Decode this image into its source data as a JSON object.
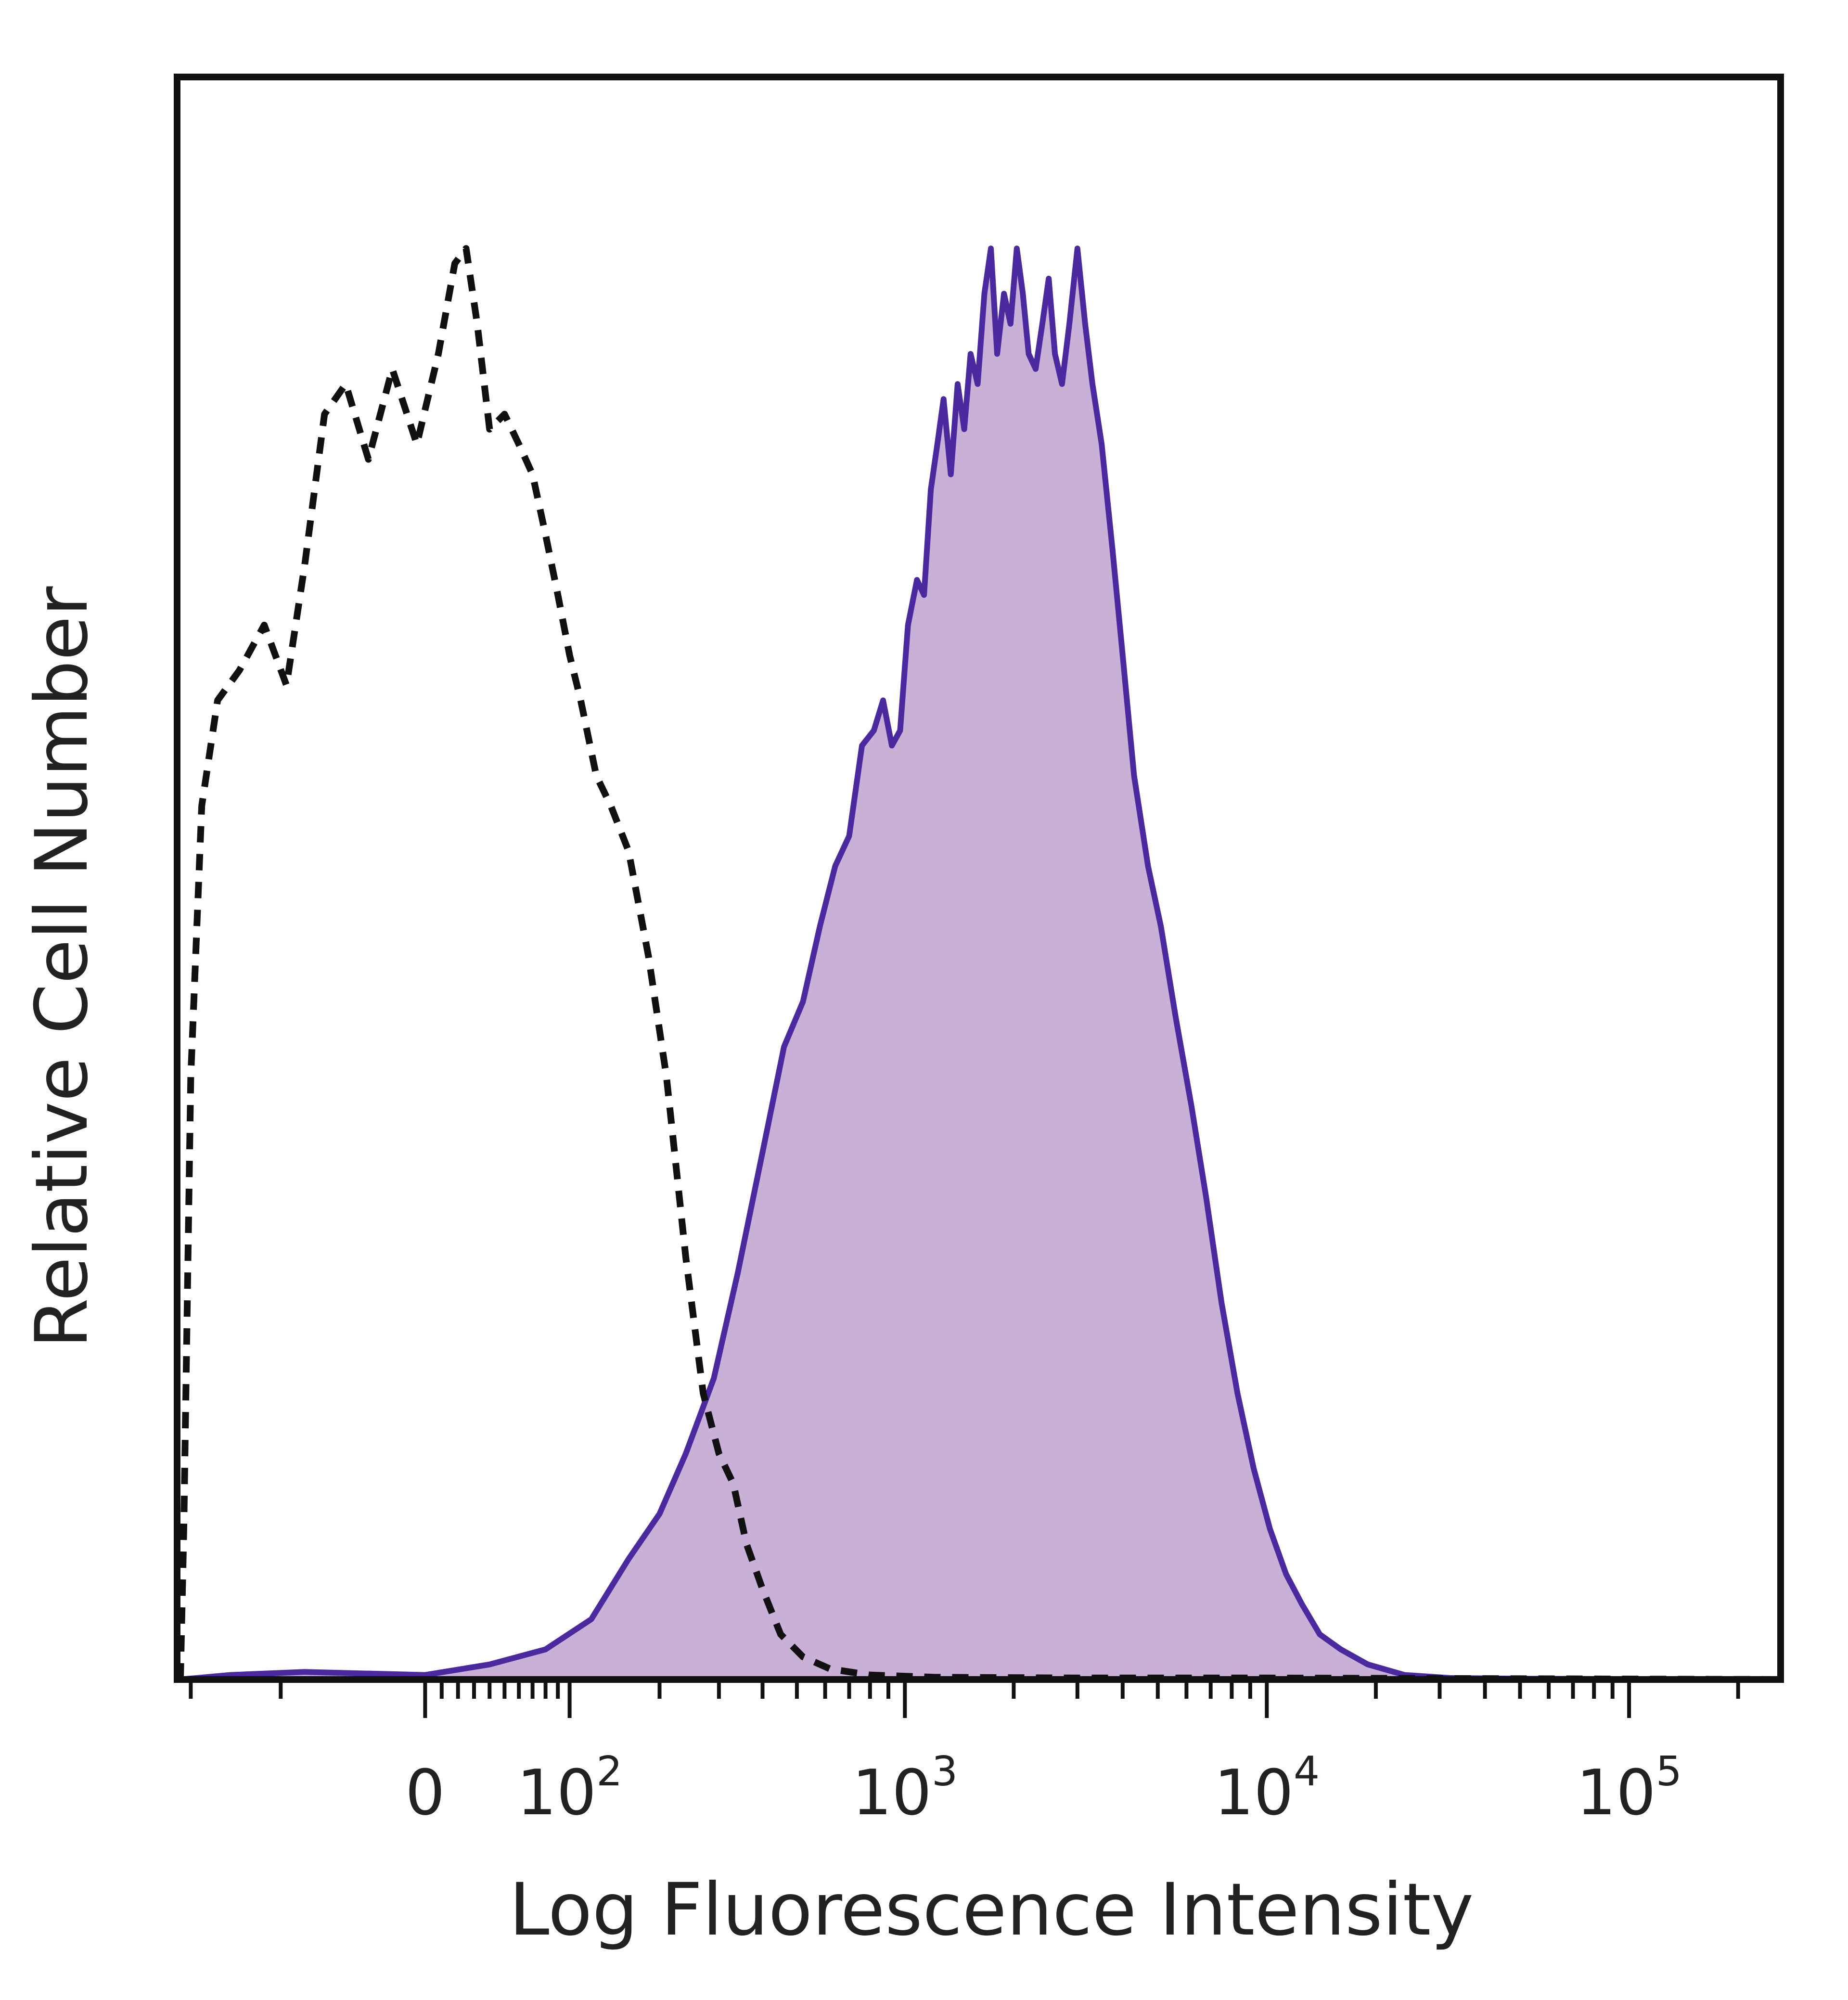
{
  "chart_data": {
    "type": "area",
    "xlabel": "Log Fluorescence Intensity",
    "ylabel": "Relative Cell Number",
    "x_scale": "biexponential",
    "x_ticks": [
      {
        "value": 0,
        "base": "0",
        "exp": ""
      },
      {
        "value": 100,
        "base": "10",
        "exp": "2"
      },
      {
        "value": 1000,
        "base": "10",
        "exp": "3"
      },
      {
        "value": 10000,
        "base": "10",
        "exp": "4"
      },
      {
        "value": 100000,
        "base": "10",
        "exp": "5"
      }
    ],
    "xlim": [
      -220,
      262000
    ],
    "ylim": [
      0,
      100
    ],
    "grid": false,
    "legend": "none",
    "series": [
      {
        "role": "isotype_control",
        "style": "dashed",
        "color": "#111111",
        "fill": "none",
        "points": [
          [
            -215,
            0
          ],
          [
            -210,
            10
          ],
          [
            -200,
            40
          ],
          [
            -185,
            58
          ],
          [
            -165,
            65
          ],
          [
            -140,
            67
          ],
          [
            -115,
            70
          ],
          [
            -95,
            66
          ],
          [
            -80,
            74
          ],
          [
            -65,
            84
          ],
          [
            -50,
            86
          ],
          [
            -35,
            81
          ],
          [
            -20,
            87
          ],
          [
            -5,
            82
          ],
          [
            8,
            88
          ],
          [
            18,
            94
          ],
          [
            25,
            95
          ],
          [
            32,
            90
          ],
          [
            40,
            83
          ],
          [
            50,
            84
          ],
          [
            60,
            82
          ],
          [
            70,
            80
          ],
          [
            80,
            76
          ],
          [
            90,
            72
          ],
          [
            100,
            68
          ],
          [
            110,
            65
          ],
          [
            125,
            60
          ],
          [
            140,
            58
          ],
          [
            160,
            55
          ],
          [
            185,
            48
          ],
          [
            210,
            40
          ],
          [
            240,
            28
          ],
          [
            270,
            19
          ],
          [
            300,
            15
          ],
          [
            330,
            13
          ],
          [
            360,
            9
          ],
          [
            400,
            6
          ],
          [
            450,
            3
          ],
          [
            520,
            1.5
          ],
          [
            620,
            0.7
          ],
          [
            800,
            0.3
          ],
          [
            1200,
            0.15
          ],
          [
            3000,
            0.1
          ],
          [
            10000,
            0.1
          ],
          [
            50000,
            0.05
          ],
          [
            262000,
            0
          ]
        ]
      },
      {
        "role": "stained",
        "style": "solid",
        "color": "#4b2aa0",
        "fill": "#c9b0d6",
        "points": [
          [
            -215,
            0
          ],
          [
            -150,
            0.3
          ],
          [
            -80,
            0.5
          ],
          [
            0,
            0.3
          ],
          [
            40,
            1
          ],
          [
            80,
            2
          ],
          [
            120,
            4
          ],
          [
            160,
            8
          ],
          [
            200,
            11
          ],
          [
            240,
            15
          ],
          [
            290,
            20
          ],
          [
            340,
            27
          ],
          [
            400,
            35
          ],
          [
            460,
            42
          ],
          [
            520,
            45
          ],
          [
            580,
            50
          ],
          [
            640,
            54
          ],
          [
            700,
            56
          ],
          [
            760,
            62
          ],
          [
            820,
            63
          ],
          [
            870,
            65
          ],
          [
            920,
            62
          ],
          [
            970,
            63
          ],
          [
            1020,
            70
          ],
          [
            1080,
            73
          ],
          [
            1130,
            72
          ],
          [
            1180,
            79
          ],
          [
            1230,
            82
          ],
          [
            1280,
            85
          ],
          [
            1340,
            80
          ],
          [
            1400,
            86
          ],
          [
            1460,
            83
          ],
          [
            1520,
            88
          ],
          [
            1590,
            86
          ],
          [
            1660,
            92
          ],
          [
            1730,
            95
          ],
          [
            1800,
            88
          ],
          [
            1880,
            92
          ],
          [
            1960,
            90
          ],
          [
            2040,
            95
          ],
          [
            2120,
            92
          ],
          [
            2200,
            88
          ],
          [
            2300,
            87
          ],
          [
            2400,
            90
          ],
          [
            2500,
            93
          ],
          [
            2600,
            88
          ],
          [
            2720,
            86
          ],
          [
            2850,
            90
          ],
          [
            3000,
            95
          ],
          [
            3150,
            90
          ],
          [
            3300,
            86
          ],
          [
            3500,
            82
          ],
          [
            3750,
            75
          ],
          [
            4000,
            68
          ],
          [
            4300,
            60
          ],
          [
            4700,
            54
          ],
          [
            5100,
            50
          ],
          [
            5600,
            44
          ],
          [
            6200,
            38
          ],
          [
            6800,
            32
          ],
          [
            7500,
            25
          ],
          [
            8300,
            19
          ],
          [
            9200,
            14
          ],
          [
            10200,
            10
          ],
          [
            11300,
            7
          ],
          [
            12500,
            5
          ],
          [
            14000,
            3
          ],
          [
            16000,
            2
          ],
          [
            19000,
            1
          ],
          [
            24000,
            0.3
          ],
          [
            32000,
            0.1
          ],
          [
            50000,
            0.05
          ],
          [
            262000,
            0
          ]
        ]
      }
    ]
  }
}
